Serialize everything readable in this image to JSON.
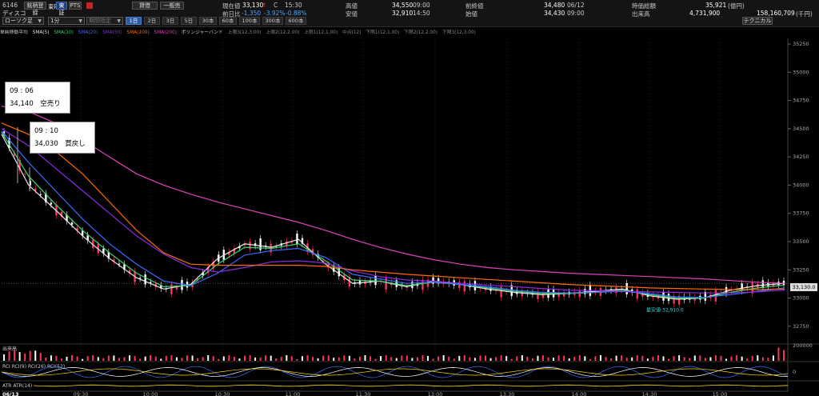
{
  "header": {
    "code": "6146",
    "name": "ディスコ",
    "watch_button": "銘柄登録",
    "exchange": "東P",
    "market_tse": "東証",
    "market_pts": "PTS",
    "credit_label": "貸借",
    "general_label": "一般売",
    "current_label": "現在値",
    "current_value": "33,130",
    "current_arrow": "↑",
    "current_suffix": "C",
    "current_time": "15:30",
    "change_label": "前日比",
    "change_value": "-1,350",
    "change_pct1": "-3.92%",
    "change_pct2": "-0.88%",
    "high_label": "高値",
    "high_value": "34,550",
    "high_time": "09:00",
    "low_label": "安値",
    "low_value": "32,910",
    "low_time": "14:50",
    "prev_close_label": "前終値",
    "prev_close_value": "34,480",
    "prev_close_date": "06/12",
    "open_label": "始値",
    "open_value": "34,430",
    "open_time": "09:00",
    "market_cap_label": "時価総額",
    "market_cap_value": "35,921",
    "market_cap_unit": "(億円)",
    "volume_label": "出来高",
    "volume_value": "4,731,900",
    "turnover_value": "158,160,709",
    "turnover_unit": "(千円)",
    "chart_type": "ローソク足",
    "interval": "1分",
    "indicator_select": "期間指定",
    "technical_button": "テクニカル"
  },
  "timeframes": [
    "1日",
    "2日",
    "3日",
    "5日",
    "30本",
    "60本",
    "100本",
    "300本",
    "600本"
  ],
  "indicator_legend": [
    {
      "text": "単純移動平均",
      "color": "#cccccc"
    },
    {
      "text": "SMA(5)",
      "color": "#e8e8e8"
    },
    {
      "text": "SMA(10)",
      "color": "#3ad36f"
    },
    {
      "text": "SMA(20)",
      "color": "#3a6bff"
    },
    {
      "text": "SMA(50)",
      "color": "#8a2be2"
    },
    {
      "text": "SMA(100)",
      "color": "#ff6a00"
    },
    {
      "text": "SMA(200)",
      "color": "#e040c0"
    },
    {
      "text": "ボリンジャーバンド",
      "color": "#cccccc"
    },
    {
      "text": "上限3(12,3.00)",
      "color": "#888888"
    },
    {
      "text": "上限2(12,2.00)",
      "color": "#888888"
    },
    {
      "text": "上限1(12,1.00)",
      "color": "#888888"
    },
    {
      "text": "中点(12)",
      "color": "#888888"
    },
    {
      "text": "下限1(12,1.00)",
      "color": "#888888"
    },
    {
      "text": "下限2(12,2.00)",
      "color": "#888888"
    },
    {
      "text": "下限3(12,3.00)",
      "color": "#888888"
    }
  ],
  "callouts": [
    {
      "time": "09 : 06",
      "text": "34,140　空売り"
    },
    {
      "time": "09 : 10",
      "text": "34,030　買戻し"
    }
  ],
  "price_tag": "33,130.0",
  "low_annotation": "最安値:32,910.0",
  "volume_label": "出来高",
  "volume_axis": "200000",
  "rci_label": "RCI  RCI(9)  RCI(26)  RCI(52)",
  "rci_axis": "0",
  "atr_label": "ATR  ATR(14)",
  "date_label": "06/13",
  "chart_data": {
    "type": "line",
    "y_ticks": [
      32750,
      33000,
      33250,
      33500,
      33750,
      34000,
      34250,
      34500,
      34750,
      35000,
      35250
    ],
    "ylim": [
      32600,
      35300
    ],
    "x_ticks": [
      "09:30",
      "10:00",
      "10:30",
      "11:00",
      "11:30",
      "13:00",
      "13:30",
      "14:00",
      "14:30",
      "15:00"
    ],
    "series": [
      {
        "name": "SMA(5)",
        "color": "#e8e8e8",
        "values": [
          34450,
          34000,
          33780,
          33550,
          33350,
          33180,
          33080,
          33120,
          33350,
          33480,
          33450,
          33520,
          33300,
          33130,
          33150,
          33100,
          33150,
          33120,
          33080,
          33050,
          33030,
          33040,
          33060,
          33080,
          33020,
          32990,
          33000,
          33070,
          33110,
          33130
        ]
      },
      {
        "name": "SMA(10)",
        "color": "#3ad36f",
        "values": [
          34470,
          34080,
          33830,
          33600,
          33400,
          33220,
          33100,
          33110,
          33300,
          33450,
          33440,
          33480,
          33330,
          33160,
          33150,
          33110,
          33140,
          33120,
          33090,
          33060,
          33040,
          33040,
          33050,
          33070,
          33030,
          33000,
          33000,
          33050,
          33090,
          33115
        ]
      },
      {
        "name": "SMA(20)",
        "color": "#3a6bff",
        "values": [
          34480,
          34200,
          33950,
          33700,
          33480,
          33300,
          33150,
          33110,
          33220,
          33380,
          33420,
          33440,
          33360,
          33210,
          33170,
          33130,
          33140,
          33120,
          33100,
          33070,
          33050,
          33045,
          33050,
          33060,
          33040,
          33010,
          33005,
          33030,
          33060,
          33090
        ]
      },
      {
        "name": "SMA(50)",
        "color": "#8a2be2",
        "values": [
          34500,
          34350,
          34150,
          33950,
          33750,
          33550,
          33390,
          33270,
          33230,
          33270,
          33320,
          33330,
          33310,
          33240,
          33190,
          33160,
          33150,
          33130,
          33115,
          33100,
          33085,
          33070,
          33065,
          33060,
          33055,
          33050,
          33045,
          33045,
          33055,
          33070
        ]
      },
      {
        "name": "SMA(100)",
        "color": "#ff6a00",
        "values": [
          34550,
          34450,
          34300,
          34100,
          33850,
          33600,
          33400,
          33300,
          33290,
          33290,
          33290,
          33290,
          33280,
          33250,
          33230,
          33210,
          33195,
          33180,
          33165,
          33150,
          33135,
          33120,
          33110,
          33100,
          33090,
          33085,
          33080,
          33075,
          33075,
          33080
        ]
      },
      {
        "name": "SMA(200)",
        "color": "#e040c0",
        "values": [
          34700,
          34650,
          34550,
          34400,
          34250,
          34100,
          34000,
          33920,
          33850,
          33790,
          33730,
          33670,
          33600,
          33520,
          33450,
          33390,
          33340,
          33300,
          33270,
          33250,
          33235,
          33220,
          33210,
          33200,
          33190,
          33180,
          33170,
          33155,
          33140,
          33130
        ]
      }
    ]
  }
}
